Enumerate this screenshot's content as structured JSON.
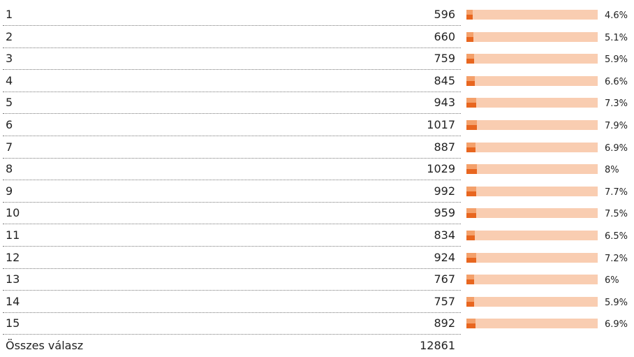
{
  "rows": [
    {
      "label": "1",
      "count": 596,
      "percent": 4.6,
      "percent_label": "4.6%"
    },
    {
      "label": "2",
      "count": 660,
      "percent": 5.1,
      "percent_label": "5.1%"
    },
    {
      "label": "3",
      "count": 759,
      "percent": 5.9,
      "percent_label": "5.9%"
    },
    {
      "label": "4",
      "count": 845,
      "percent": 6.6,
      "percent_label": "6.6%"
    },
    {
      "label": "5",
      "count": 943,
      "percent": 7.3,
      "percent_label": "7.3%"
    },
    {
      "label": "6",
      "count": 1017,
      "percent": 7.9,
      "percent_label": "7.9%"
    },
    {
      "label": "7",
      "count": 887,
      "percent": 6.9,
      "percent_label": "6.9%"
    },
    {
      "label": "8",
      "count": 1029,
      "percent": 8,
      "percent_label": "8%"
    },
    {
      "label": "9",
      "count": 992,
      "percent": 7.7,
      "percent_label": "7.7%"
    },
    {
      "label": "10",
      "count": 959,
      "percent": 7.5,
      "percent_label": "7.5%"
    },
    {
      "label": "11",
      "count": 834,
      "percent": 6.5,
      "percent_label": "6.5%"
    },
    {
      "label": "12",
      "count": 924,
      "percent": 7.2,
      "percent_label": "7.2%"
    },
    {
      "label": "13",
      "count": 767,
      "percent": 6,
      "percent_label": "6%"
    },
    {
      "label": "14",
      "count": 757,
      "percent": 5.9,
      "percent_label": "5.9%"
    },
    {
      "label": "15",
      "count": 892,
      "percent": 6.9,
      "percent_label": "6.9%"
    }
  ],
  "total": {
    "label": "Összes válasz",
    "count": 12861
  }
}
